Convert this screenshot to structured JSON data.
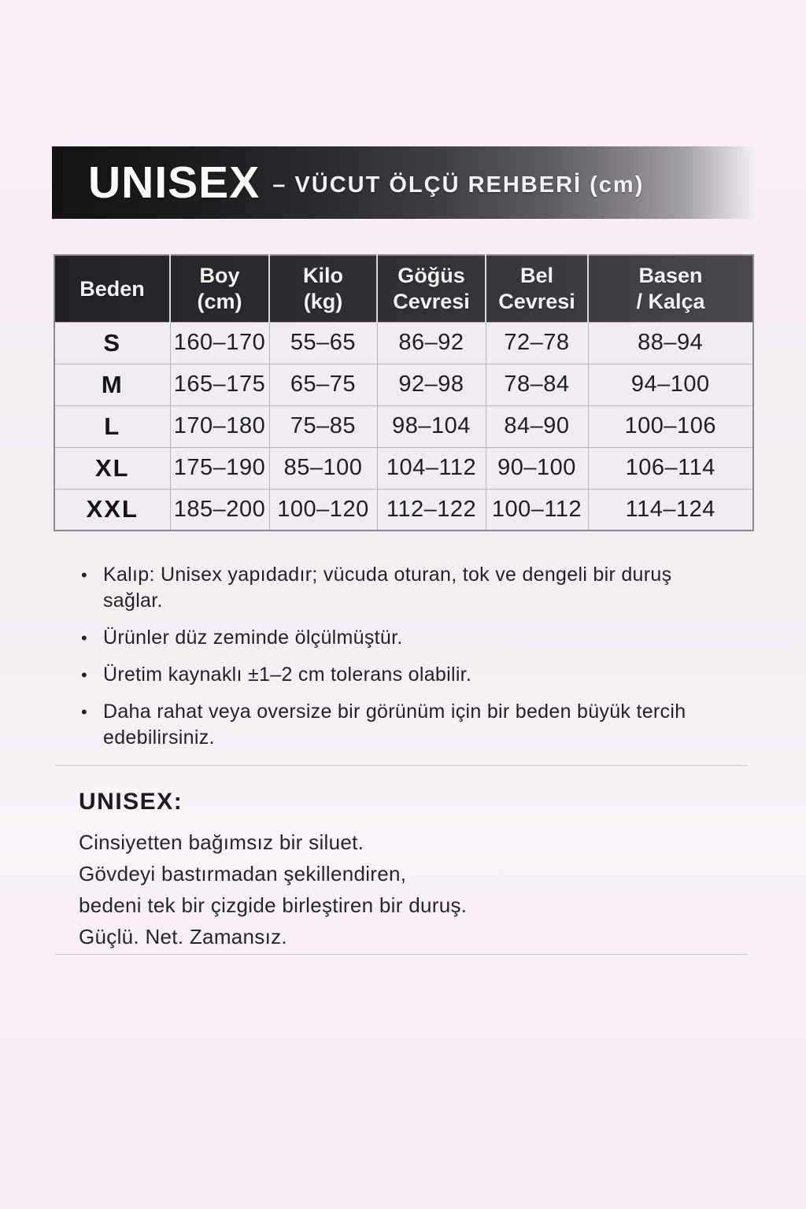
{
  "banner": {
    "title": "UNISEX",
    "subtitle": "– VÜCUT ÖLÇÜ REHBERİ (cm)"
  },
  "size_table": {
    "columns": {
      "size": "Beden",
      "height": "Boy\n(cm)",
      "weight": "Kilo\n(kg)",
      "chest": "Göğüs\nCevresi",
      "waist": "Bel\nCevresi",
      "hip": "Basen\n/ Kalça"
    },
    "rows": [
      {
        "size": "S",
        "height": "160–170",
        "weight": "55–65",
        "chest": "86–92",
        "waist": "72–78",
        "hip": "88–94"
      },
      {
        "size": "M",
        "height": "165–175",
        "weight": "65–75",
        "chest": "92–98",
        "waist": "78–84",
        "hip": "94–100"
      },
      {
        "size": "L",
        "height": "170–180",
        "weight": "75–85",
        "chest": "98–104",
        "waist": "84–90",
        "hip": "100–106"
      },
      {
        "size": "XL",
        "height": "175–190",
        "weight": "85–100",
        "chest": "104–112",
        "waist": "90–100",
        "hip": "106–114"
      },
      {
        "size": "XXL",
        "height": "185–200",
        "weight": "100–120",
        "chest": "112–122",
        "waist": "100–112",
        "hip": "114–124"
      }
    ]
  },
  "notes": {
    "bullet": "•",
    "items": [
      "Kalıp: Unisex yapıdadır; vücuda oturan, tok ve dengeli bir duruş sağlar.",
      "Ürünler düz zeminde ölçülmüştür.",
      "Üretim kaynaklı ±1–2 cm tolerans olabilir.",
      "Daha rahat veya oversize bir görünüm için bir beden büyük tercih edebilirsiniz."
    ]
  },
  "description": {
    "heading": "UNISEX:",
    "lines": [
      "Cinsiyetten bağımsız bir siluet.",
      "Gövdeyi bastırmadan şekillendiren,",
      "bedeni tek bir çizgide birleştiren bir duruş.",
      "Güçlü. Net. Zamansız."
    ]
  },
  "colors": {
    "page_background": "#f7eff5",
    "banner_dark": "#131214",
    "banner_fade": "#a5a1a9",
    "table_header_bg": "#2b2a2e",
    "table_row_bg": "#f1ecf1",
    "table_border": "#b6b3b9",
    "text": "#232228"
  }
}
